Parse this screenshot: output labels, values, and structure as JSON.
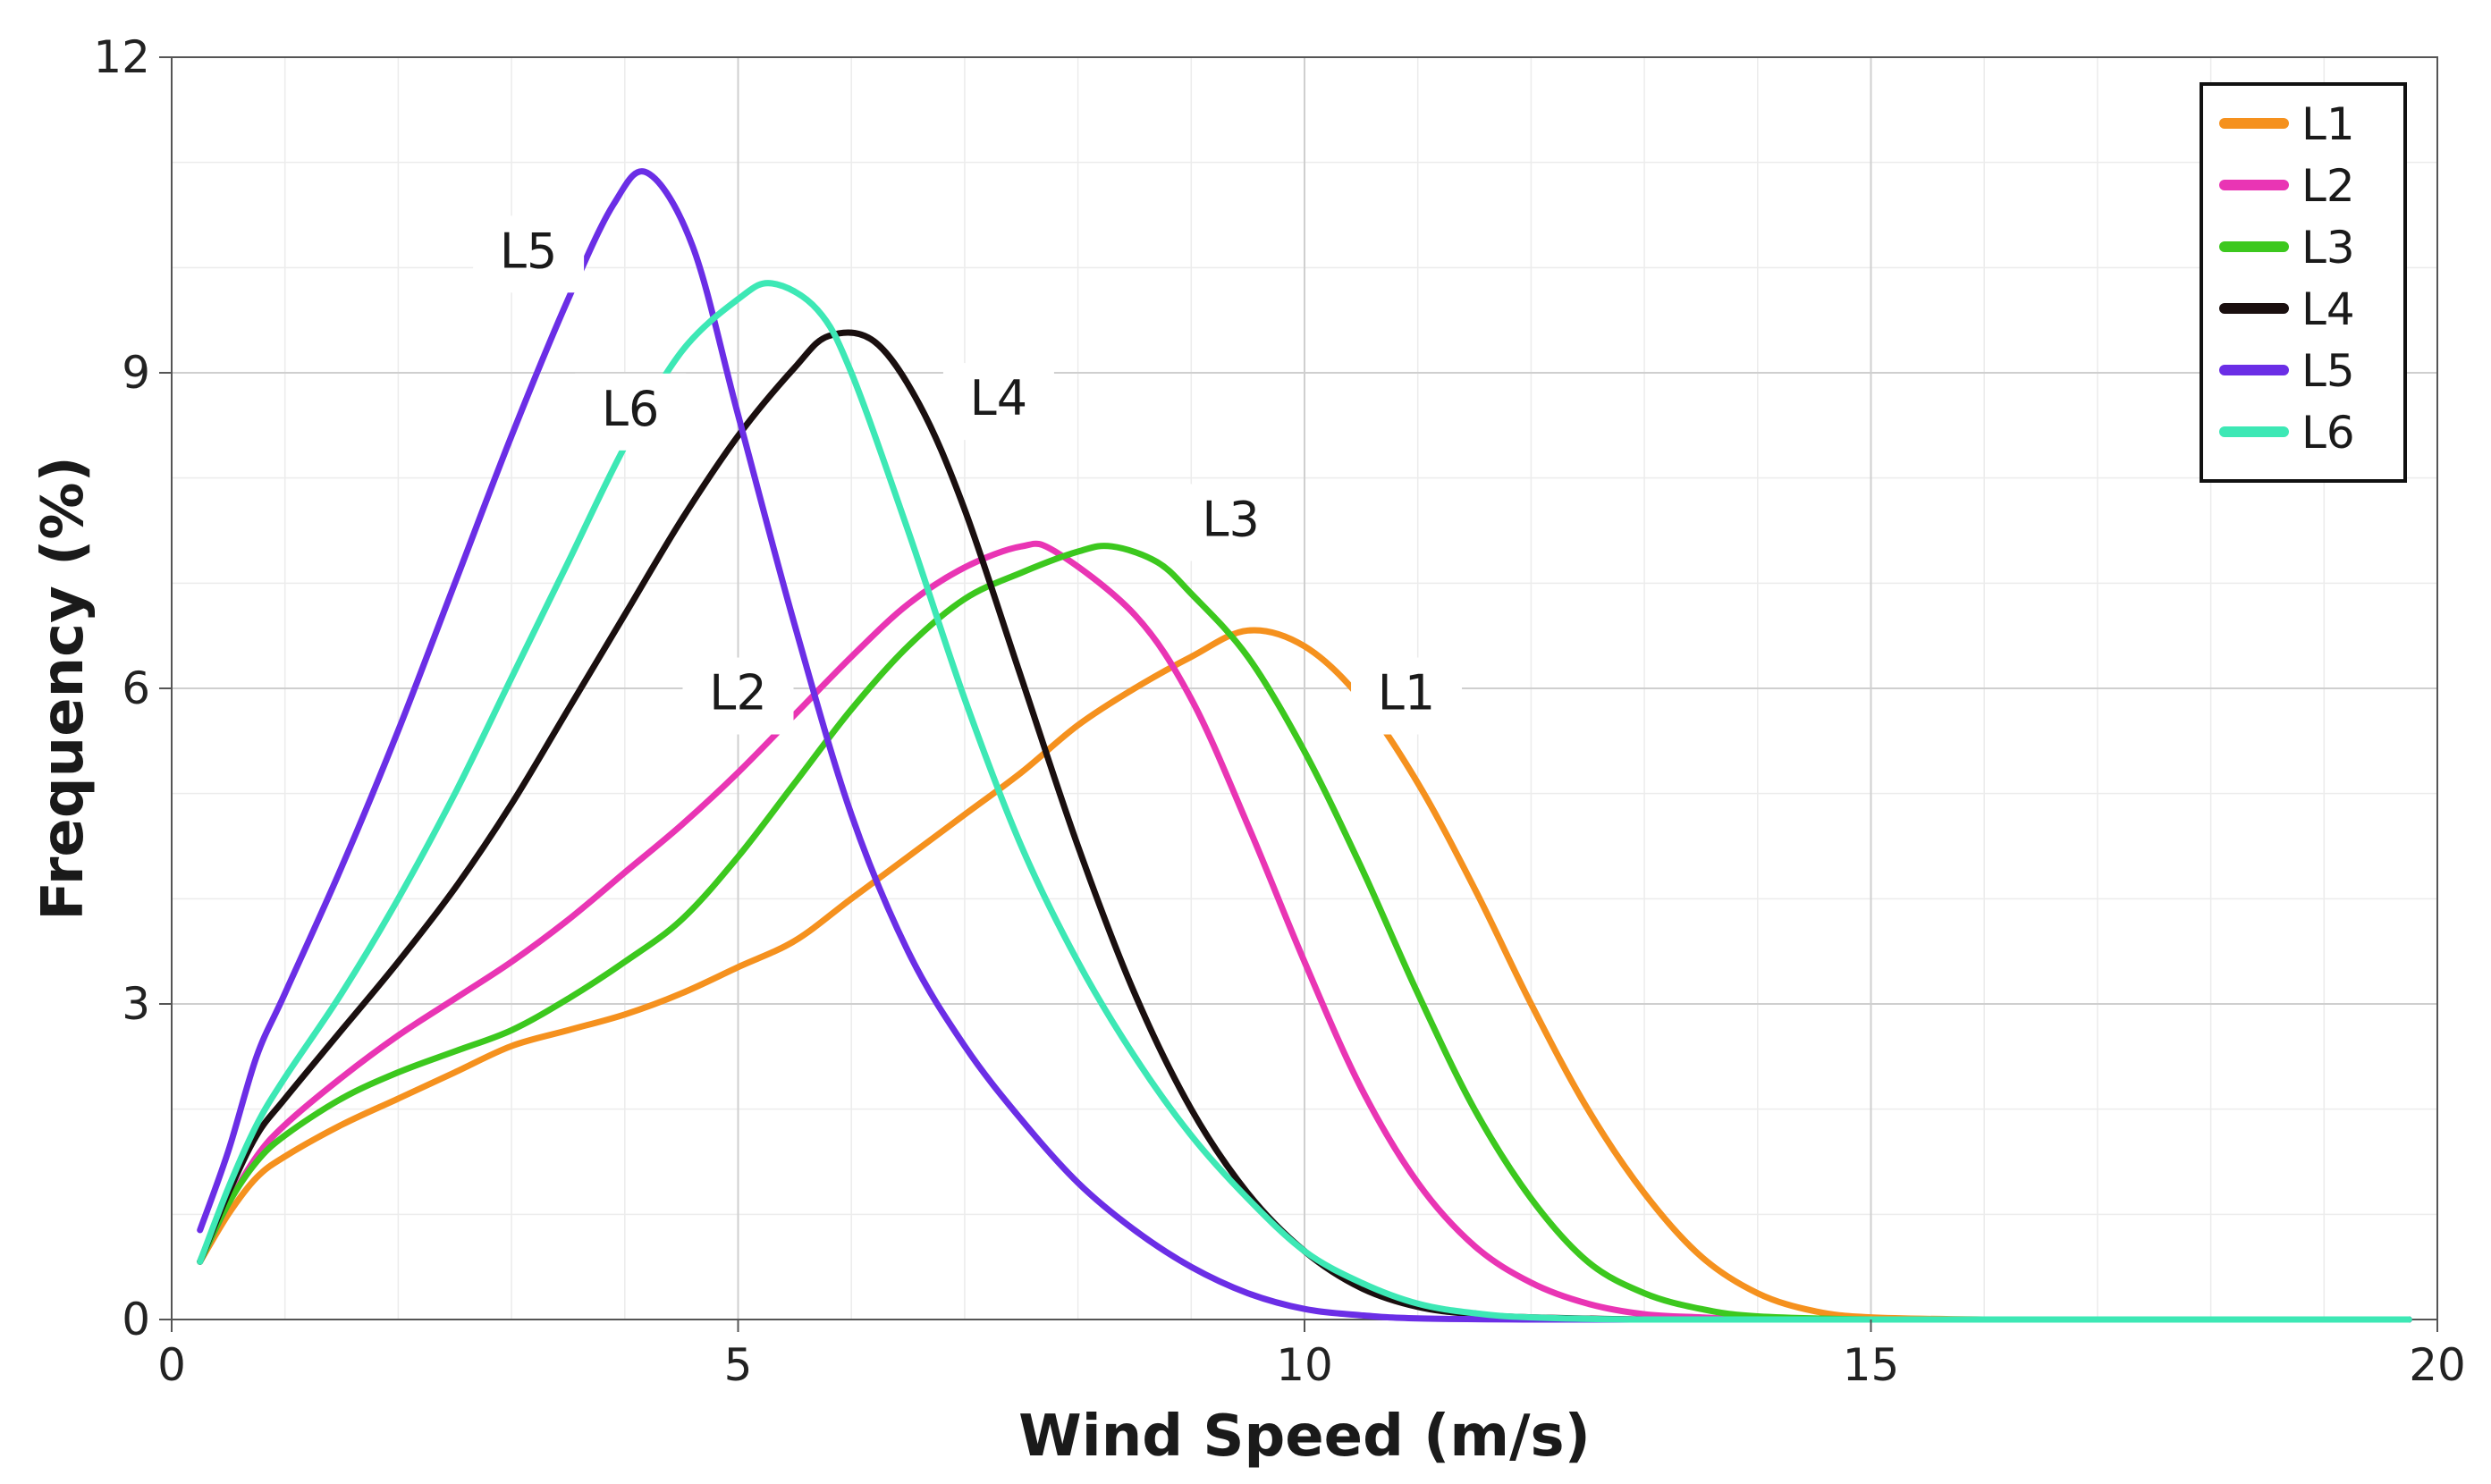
{
  "chart_data": {
    "type": "line",
    "title": "",
    "xlabel": "Wind Speed (m/s)",
    "ylabel": "Frequency (%)",
    "xlim": [
      0,
      20
    ],
    "ylim": [
      0,
      12
    ],
    "xticks": [
      0,
      5,
      10,
      15,
      20
    ],
    "yticks": [
      0,
      3,
      6,
      9,
      12
    ],
    "xtick_labels": [
      "0",
      "5",
      "10",
      "15",
      "20"
    ],
    "ytick_labels": [
      "0",
      "3",
      "6",
      "9",
      "12"
    ],
    "grid": true,
    "legend_position": "top-right",
    "series": [
      {
        "name": "L1",
        "color": "#F5911E",
        "x": [
          0.25,
          0.5,
          0.75,
          1,
          1.5,
          2,
          2.5,
          3,
          3.5,
          4,
          4.5,
          5,
          5.5,
          6,
          6.5,
          7,
          7.5,
          8,
          8.5,
          9,
          9.5,
          10,
          10.5,
          11,
          11.5,
          12,
          12.5,
          13,
          13.5,
          14,
          14.5,
          15,
          16,
          17,
          18,
          19,
          19.75
        ],
        "y": [
          0.55,
          1.0,
          1.35,
          1.55,
          1.85,
          2.1,
          2.35,
          2.6,
          2.75,
          2.9,
          3.1,
          3.35,
          3.6,
          4.0,
          4.4,
          4.8,
          5.2,
          5.65,
          6.0,
          6.3,
          6.55,
          6.4,
          5.9,
          5.1,
          4.1,
          3.0,
          2.0,
          1.2,
          0.6,
          0.25,
          0.08,
          0.02,
          0,
          0,
          0,
          0,
          0
        ]
      },
      {
        "name": "L2",
        "color": "#E935B4",
        "x": [
          0.25,
          0.5,
          0.75,
          1,
          1.5,
          2,
          2.5,
          3,
          3.5,
          4,
          4.5,
          5,
          5.5,
          6,
          6.5,
          7,
          7.5,
          7.8,
          8.5,
          9,
          9.5,
          10,
          10.5,
          11,
          11.5,
          12,
          12.5,
          13,
          13.5,
          14,
          15,
          16,
          18,
          19.75
        ],
        "y": [
          0.55,
          1.1,
          1.55,
          1.85,
          2.3,
          2.7,
          3.05,
          3.4,
          3.8,
          4.25,
          4.7,
          5.2,
          5.75,
          6.3,
          6.8,
          7.15,
          7.35,
          7.3,
          6.7,
          5.9,
          4.7,
          3.4,
          2.2,
          1.3,
          0.7,
          0.35,
          0.15,
          0.05,
          0.02,
          0,
          0,
          0,
          0,
          0
        ]
      },
      {
        "name": "L3",
        "color": "#3CC81E",
        "x": [
          0.25,
          0.5,
          0.75,
          1,
          1.5,
          2,
          2.5,
          3,
          3.5,
          4,
          4.5,
          5,
          5.5,
          6,
          6.5,
          7,
          7.5,
          8,
          8.3,
          8.7,
          9,
          9.5,
          10,
          10.5,
          11,
          11.5,
          12,
          12.5,
          13,
          13.5,
          14,
          15,
          16,
          18,
          19.75
        ],
        "y": [
          0.55,
          1.1,
          1.5,
          1.75,
          2.1,
          2.35,
          2.55,
          2.75,
          3.05,
          3.4,
          3.8,
          4.4,
          5.1,
          5.8,
          6.4,
          6.85,
          7.1,
          7.3,
          7.35,
          7.2,
          6.9,
          6.3,
          5.4,
          4.3,
          3.1,
          2.0,
          1.15,
          0.55,
          0.25,
          0.1,
          0.03,
          0,
          0,
          0,
          0
        ]
      },
      {
        "name": "L4",
        "color": "#1A0F0F",
        "x": [
          0.25,
          0.5,
          0.75,
          1,
          1.5,
          2,
          2.5,
          3,
          3.5,
          4,
          4.5,
          5,
          5.5,
          5.8,
          6.2,
          6.6,
          7,
          7.5,
          8,
          8.5,
          9,
          9.5,
          10,
          10.5,
          11,
          11.5,
          12,
          13,
          14,
          16,
          18,
          19.75
        ],
        "y": [
          0.55,
          1.2,
          1.75,
          2.1,
          2.75,
          3.4,
          4.1,
          4.9,
          5.8,
          6.7,
          7.6,
          8.4,
          9.05,
          9.35,
          9.3,
          8.7,
          7.7,
          6.1,
          4.5,
          3.1,
          2.0,
          1.2,
          0.65,
          0.3,
          0.12,
          0.05,
          0.02,
          0,
          0,
          0,
          0,
          0
        ]
      },
      {
        "name": "L5",
        "color": "#6B2EE6",
        "x": [
          0.25,
          0.5,
          0.75,
          1,
          1.5,
          2,
          2.5,
          3,
          3.5,
          3.9,
          4.2,
          4.6,
          5,
          5.5,
          6,
          6.5,
          7,
          7.5,
          8,
          8.5,
          9,
          9.5,
          10,
          10.5,
          11,
          12,
          13,
          15,
          17,
          19.75
        ],
        "y": [
          0.85,
          1.6,
          2.5,
          3.1,
          4.3,
          5.6,
          7.0,
          8.4,
          9.7,
          10.6,
          10.9,
          10.2,
          8.6,
          6.6,
          4.8,
          3.5,
          2.6,
          1.9,
          1.3,
          0.85,
          0.5,
          0.25,
          0.1,
          0.04,
          0.01,
          0,
          0,
          0,
          0,
          0
        ]
      },
      {
        "name": "L6",
        "color": "#3DE8B5",
        "x": [
          0.25,
          0.5,
          0.75,
          1,
          1.5,
          2,
          2.5,
          3,
          3.5,
          4,
          4.5,
          5,
          5.3,
          5.7,
          6,
          6.5,
          7,
          7.5,
          8,
          8.5,
          9,
          9.5,
          10,
          10.5,
          11,
          11.5,
          12,
          13,
          15,
          17,
          19.75
        ],
        "y": [
          0.55,
          1.25,
          1.85,
          2.3,
          3.1,
          4.0,
          5.0,
          6.1,
          7.2,
          8.3,
          9.2,
          9.7,
          9.85,
          9.6,
          9.0,
          7.5,
          5.9,
          4.5,
          3.4,
          2.5,
          1.75,
          1.15,
          0.65,
          0.35,
          0.15,
          0.06,
          0.02,
          0,
          0,
          0,
          0
        ]
      }
    ],
    "annotations": [
      {
        "text": "L1",
        "x": 10.9,
        "y": 5.8,
        "series": "L1"
      },
      {
        "text": "L2",
        "x": 5.0,
        "y": 5.8,
        "series": "L2"
      },
      {
        "text": "L3",
        "x": 9.35,
        "y": 7.45,
        "series": "L3"
      },
      {
        "text": "L4",
        "x": 7.3,
        "y": 8.6,
        "series": "L4"
      },
      {
        "text": "L5",
        "x": 3.15,
        "y": 10.0,
        "series": "L5"
      },
      {
        "text": "L6",
        "x": 4.05,
        "y": 8.5,
        "series": "L6"
      }
    ]
  }
}
